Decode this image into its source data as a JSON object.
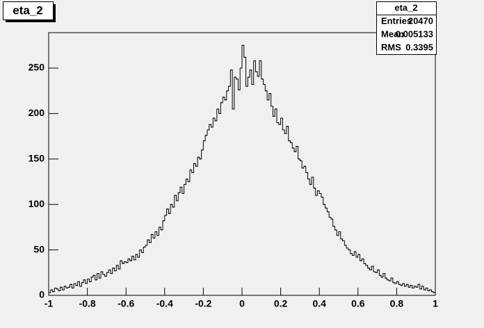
{
  "chart_data": {
    "type": "histogram",
    "title": "eta_2",
    "stats": {
      "title": "eta_2",
      "rows": [
        {
          "label": "Entries",
          "value": 20470
        },
        {
          "label": "Mean",
          "value": 0.005133
        },
        {
          "label": "RMS",
          "value": 0.3395
        }
      ]
    },
    "bins": [
      -1,
      -0.99,
      -0.98,
      -0.97,
      -0.96,
      -0.95,
      -0.94,
      -0.93,
      -0.92,
      -0.91,
      -0.9,
      -0.89,
      -0.88,
      -0.87,
      -0.86,
      -0.85,
      -0.84,
      -0.83,
      -0.82,
      -0.81,
      -0.8,
      -0.79,
      -0.78,
      -0.77,
      -0.76,
      -0.75,
      -0.74,
      -0.73,
      -0.72,
      -0.71,
      -0.7,
      -0.69,
      -0.68,
      -0.67,
      -0.66,
      -0.65,
      -0.64,
      -0.63,
      -0.62,
      -0.61,
      -0.6,
      -0.59,
      -0.58,
      -0.57,
      -0.56,
      -0.55,
      -0.54,
      -0.53,
      -0.52,
      -0.51,
      -0.5,
      -0.49,
      -0.48,
      -0.47,
      -0.46,
      -0.45,
      -0.44,
      -0.43,
      -0.42,
      -0.41,
      -0.4,
      -0.39,
      -0.38,
      -0.37,
      -0.36,
      -0.35,
      -0.34,
      -0.33,
      -0.32,
      -0.31,
      -0.3,
      -0.29,
      -0.28,
      -0.27,
      -0.26,
      -0.25,
      -0.24,
      -0.23,
      -0.22,
      -0.21,
      -0.2,
      -0.19,
      -0.18,
      -0.17,
      -0.16,
      -0.15,
      -0.14,
      -0.13,
      -0.12,
      -0.11,
      -0.1,
      -0.09,
      -0.08,
      -0.07,
      -0.06,
      -0.05,
      -0.04,
      -0.03,
      -0.02,
      -0.01,
      0,
      0.01,
      0.02,
      0.03,
      0.04,
      0.05,
      0.06,
      0.07,
      0.08,
      0.09,
      0.1,
      0.11,
      0.12,
      0.13,
      0.14,
      0.15,
      0.16,
      0.17,
      0.18,
      0.19,
      0.2,
      0.21,
      0.22,
      0.23,
      0.24,
      0.25,
      0.26,
      0.27,
      0.28,
      0.29,
      0.3,
      0.31,
      0.32,
      0.33,
      0.34,
      0.35,
      0.36,
      0.37,
      0.38,
      0.39,
      0.4,
      0.41,
      0.42,
      0.43,
      0.44,
      0.45,
      0.46,
      0.47,
      0.48,
      0.49,
      0.5,
      0.51,
      0.52,
      0.53,
      0.54,
      0.55,
      0.56,
      0.57,
      0.58,
      0.59,
      0.6,
      0.61,
      0.62,
      0.63,
      0.64,
      0.65,
      0.66,
      0.67,
      0.68,
      0.69,
      0.7,
      0.71,
      0.72,
      0.73,
      0.74,
      0.75,
      0.76,
      0.77,
      0.78,
      0.79,
      0.8,
      0.81,
      0.82,
      0.83,
      0.84,
      0.85,
      0.86,
      0.87,
      0.88,
      0.89,
      0.9,
      0.91,
      0.92,
      0.93,
      0.94,
      0.95,
      0.96,
      0.97,
      0.98,
      0.99,
      1
    ],
    "values": [
      3,
      6,
      4,
      8,
      7,
      5,
      9,
      6,
      10,
      8,
      9,
      12,
      8,
      13,
      11,
      15,
      10,
      14,
      17,
      13,
      18,
      15,
      20,
      22,
      17,
      24,
      19,
      26,
      23,
      21,
      25,
      28,
      24,
      30,
      27,
      33,
      29,
      38,
      35,
      37,
      36,
      40,
      38,
      43,
      39,
      45,
      42,
      50,
      47,
      53,
      55,
      61,
      58,
      67,
      63,
      70,
      66,
      75,
      72,
      82,
      88,
      95,
      90,
      100,
      97,
      110,
      104,
      113,
      119,
      112,
      122,
      128,
      125,
      138,
      135,
      145,
      142,
      152,
      150,
      160,
      170,
      176,
      182,
      188,
      185,
      195,
      192,
      205,
      200,
      212,
      218,
      215,
      225,
      230,
      248,
      205,
      240,
      238,
      226,
      250,
      275,
      262,
      230,
      240,
      248,
      232,
      258,
      246,
      241,
      258,
      238,
      232,
      225,
      215,
      222,
      208,
      197,
      205,
      190,
      188,
      195,
      182,
      178,
      186,
      170,
      168,
      162,
      158,
      164,
      150,
      148,
      140,
      142,
      135,
      128,
      122,
      130,
      118,
      110,
      115,
      112,
      108,
      100,
      96,
      92,
      86,
      84,
      76,
      72,
      66,
      70,
      62,
      60,
      55,
      52,
      50,
      46,
      44,
      48,
      42,
      45,
      38,
      40,
      35,
      33,
      30,
      28,
      32,
      26,
      25,
      28,
      22,
      20,
      24,
      19,
      17,
      16,
      19,
      14,
      13,
      15,
      12,
      11,
      13,
      10,
      12,
      9,
      11,
      8,
      10,
      9,
      12,
      7,
      10,
      6,
      8,
      5,
      6,
      4,
      3
    ],
    "color": "#000000",
    "xlim": [
      -1,
      1
    ],
    "xticks": [
      -1,
      -0.8,
      -0.6,
      -0.4,
      -0.2,
      0,
      0.2,
      0.4,
      0.6,
      0.8,
      1
    ],
    "ylim": [
      0,
      289
    ],
    "yticks": [
      0,
      50,
      100,
      150,
      200,
      250
    ]
  }
}
